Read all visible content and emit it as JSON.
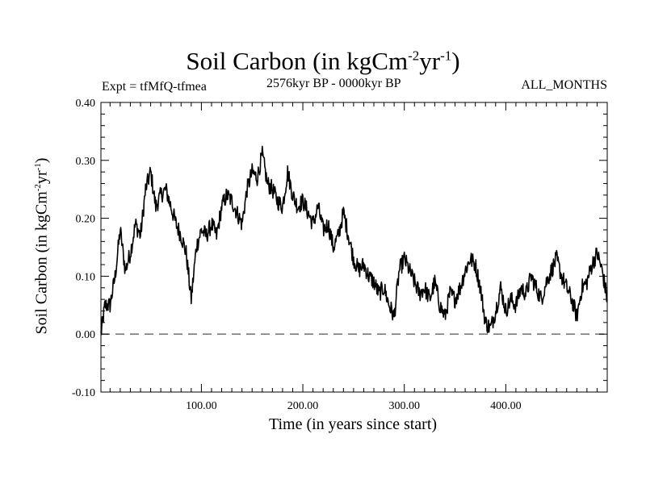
{
  "header": {
    "title": "Soil Carbon (in kgCm",
    "title_exp1": "-2",
    "title_mid": "yr",
    "title_exp2": "-1",
    "title_end": ")",
    "experiment": "Expt = tfMfQ-tfmea",
    "period": "2576kyr BP - 0000kyr BP",
    "months": "ALL_MONTHS"
  },
  "chart_data": {
    "type": "line",
    "title": "Soil Carbon (in kgCm-2yr-1)",
    "xlabel": "Time (in years since start)",
    "ylabel": "Soil Carbon (in kgCm-2yr-1)",
    "xlim": [
      1,
      500
    ],
    "ylim": [
      -0.1,
      0.4
    ],
    "xticks": [
      100,
      200,
      300,
      400
    ],
    "xtick_labels": [
      "100.00",
      "200.00",
      "300.00",
      "400.00"
    ],
    "yticks": [
      -0.1,
      0.0,
      0.1,
      0.2,
      0.3,
      0.4
    ],
    "ytick_labels": [
      "-0.10",
      "0.00",
      "0.10",
      "0.20",
      "0.30",
      "0.40"
    ],
    "reference_line": 0.0,
    "series": [
      {
        "name": "Soil Carbon",
        "x": [
          1,
          5,
          10,
          15,
          20,
          25,
          30,
          35,
          40,
          45,
          50,
          55,
          60,
          65,
          70,
          75,
          80,
          85,
          90,
          95,
          100,
          105,
          110,
          115,
          120,
          125,
          130,
          135,
          140,
          145,
          150,
          155,
          160,
          165,
          170,
          175,
          180,
          185,
          190,
          195,
          200,
          205,
          210,
          215,
          220,
          225,
          230,
          235,
          240,
          245,
          250,
          255,
          260,
          265,
          270,
          275,
          280,
          285,
          290,
          295,
          300,
          305,
          310,
          315,
          320,
          325,
          330,
          335,
          340,
          345,
          350,
          355,
          360,
          365,
          370,
          375,
          380,
          385,
          390,
          395,
          400,
          405,
          410,
          415,
          420,
          425,
          430,
          435,
          440,
          445,
          450,
          455,
          460,
          465,
          470,
          475,
          480,
          485,
          490,
          495,
          500
        ],
        "values": [
          0.0,
          0.05,
          0.05,
          0.1,
          0.18,
          0.11,
          0.14,
          0.19,
          0.17,
          0.25,
          0.28,
          0.22,
          0.24,
          0.25,
          0.22,
          0.19,
          0.17,
          0.14,
          0.06,
          0.15,
          0.18,
          0.17,
          0.19,
          0.17,
          0.22,
          0.24,
          0.23,
          0.21,
          0.19,
          0.25,
          0.28,
          0.27,
          0.31,
          0.26,
          0.25,
          0.23,
          0.22,
          0.28,
          0.24,
          0.22,
          0.23,
          0.21,
          0.19,
          0.22,
          0.18,
          0.19,
          0.15,
          0.17,
          0.21,
          0.17,
          0.13,
          0.11,
          0.12,
          0.1,
          0.09,
          0.07,
          0.08,
          0.05,
          0.03,
          0.11,
          0.13,
          0.11,
          0.09,
          0.07,
          0.08,
          0.06,
          0.09,
          0.05,
          0.03,
          0.07,
          0.06,
          0.08,
          0.11,
          0.13,
          0.12,
          0.08,
          0.02,
          0.01,
          0.04,
          0.08,
          0.04,
          0.06,
          0.05,
          0.08,
          0.07,
          0.1,
          0.08,
          0.06,
          0.09,
          0.11,
          0.13,
          0.1,
          0.08,
          0.06,
          0.03,
          0.08,
          0.09,
          0.12,
          0.14,
          0.11,
          0.06
        ]
      }
    ]
  }
}
